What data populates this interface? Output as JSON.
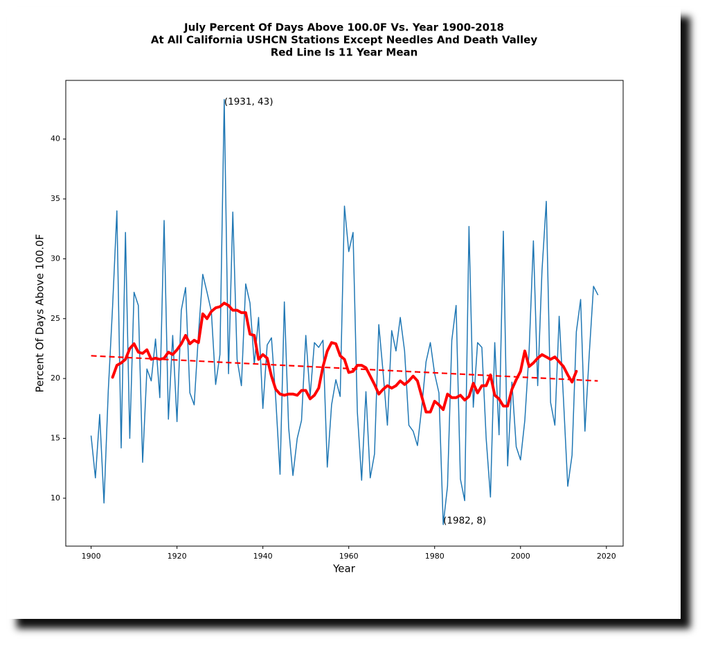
{
  "chart_data": {
    "type": "line",
    "title": [
      "July Percent Of Days Above 100.0F Vs. Year 1900-2018",
      "At All California USHCN Stations Except Needles And Death Valley",
      "Red Line Is 11 Year Mean"
    ],
    "x_label": "Year",
    "y_label": "Percent Of Days Above 100.0F",
    "xlim": [
      1894.1,
      2023.9
    ],
    "ylim": [
      6.0,
      44.9
    ],
    "xticks": [
      1900,
      1920,
      1940,
      1960,
      1980,
      2000,
      2020
    ],
    "yticks": [
      10,
      15,
      20,
      25,
      30,
      35,
      40
    ],
    "series": [
      {
        "color": "#1f77b4",
        "linestyle": "solid",
        "x": [
          1900,
          1901,
          1902,
          1903,
          1904,
          1905,
          1906,
          1907,
          1908,
          1909,
          1910,
          1911,
          1912,
          1913,
          1914,
          1915,
          1916,
          1917,
          1918,
          1919,
          1920,
          1921,
          1922,
          1923,
          1924,
          1925,
          1926,
          1927,
          1928,
          1929,
          1930,
          1931,
          1932,
          1933,
          1934,
          1935,
          1936,
          1937,
          1938,
          1939,
          1940,
          1941,
          1942,
          1943,
          1944,
          1945,
          1946,
          1947,
          1948,
          1949,
          1950,
          1951,
          1952,
          1953,
          1954,
          1955,
          1956,
          1957,
          1958,
          1959,
          1960,
          1961,
          1962,
          1963,
          1964,
          1965,
          1966,
          1967,
          1968,
          1969,
          1970,
          1971,
          1972,
          1973,
          1974,
          1975,
          1976,
          1977,
          1978,
          1979,
          1980,
          1981,
          1982,
          1983,
          1984,
          1985,
          1986,
          1987,
          1988,
          1989,
          1990,
          1991,
          1992,
          1993,
          1994,
          1995,
          1996,
          1997,
          1998,
          1999,
          2000,
          2001,
          2002,
          2003,
          2004,
          2005,
          2006,
          2007,
          2008,
          2009,
          2010,
          2011,
          2012,
          2013,
          2014,
          2015,
          2016,
          2017,
          2018
        ],
        "values": [
          15.2,
          11.7,
          17.0,
          9.6,
          19.0,
          26.0,
          34.0,
          14.2,
          32.2,
          15.0,
          27.2,
          26.1,
          13.0,
          20.8,
          19.8,
          23.3,
          18.4,
          33.2,
          16.6,
          23.6,
          16.4,
          25.7,
          27.6,
          18.8,
          17.8,
          23.7,
          28.7,
          27.2,
          25.6,
          19.5,
          22.0,
          43.3,
          20.4,
          33.9,
          21.6,
          19.4,
          27.9,
          26.3,
          21.2,
          25.1,
          17.5,
          22.8,
          23.4,
          18.3,
          12.0,
          26.4,
          15.9,
          11.9,
          15.0,
          16.5,
          23.6,
          18.5,
          23.0,
          22.6,
          23.2,
          12.6,
          17.8,
          19.9,
          18.5,
          34.4,
          30.6,
          32.2,
          17.2,
          11.5,
          18.9,
          11.7,
          13.7,
          24.5,
          20.5,
          16.1,
          24.0,
          22.3,
          25.1,
          22.3,
          16.1,
          15.6,
          14.4,
          17.6,
          21.4,
          23.0,
          20.4,
          18.8,
          7.8,
          11.0,
          23.2,
          26.1,
          11.6,
          9.8,
          32.7,
          17.6,
          23.0,
          22.6,
          15.0,
          10.1,
          23.0,
          15.3,
          32.3,
          12.7,
          19.7,
          14.3,
          13.2,
          16.5,
          22.3,
          31.5,
          19.4,
          29.0,
          34.8,
          18.0,
          16.1,
          25.2,
          18.3,
          11.0,
          13.6,
          23.9,
          26.6,
          15.6,
          22.0,
          27.7,
          27.0
        ]
      },
      {
        "color": "#ff0000",
        "linestyle": "solid",
        "x": [
          1905,
          1906,
          1907,
          1908,
          1909,
          1910,
          1911,
          1912,
          1913,
          1914,
          1915,
          1916,
          1917,
          1918,
          1919,
          1920,
          1921,
          1922,
          1923,
          1924,
          1925,
          1926,
          1927,
          1928,
          1929,
          1930,
          1931,
          1932,
          1933,
          1934,
          1935,
          1936,
          1937,
          1938,
          1939,
          1940,
          1941,
          1942,
          1943,
          1944,
          1945,
          1946,
          1947,
          1948,
          1949,
          1950,
          1951,
          1952,
          1953,
          1954,
          1955,
          1956,
          1957,
          1958,
          1959,
          1960,
          1961,
          1962,
          1963,
          1964,
          1965,
          1966,
          1967,
          1968,
          1969,
          1970,
          1971,
          1972,
          1973,
          1974,
          1975,
          1976,
          1977,
          1978,
          1979,
          1980,
          1981,
          1982,
          1983,
          1984,
          1985,
          1986,
          1987,
          1988,
          1989,
          1990,
          1991,
          1992,
          1993,
          1994,
          1995,
          1996,
          1997,
          1998,
          1999,
          2000,
          2001,
          2002,
          2003,
          2004,
          2005,
          2006,
          2007,
          2008,
          2009,
          2010,
          2011,
          2012,
          2013
        ],
        "values": [
          20.1,
          21.1,
          21.3,
          21.6,
          22.5,
          22.9,
          22.2,
          22.1,
          22.4,
          21.6,
          21.7,
          21.6,
          21.7,
          22.2,
          22.0,
          22.4,
          22.9,
          23.6,
          22.9,
          23.2,
          23.0,
          25.4,
          25.0,
          25.6,
          25.9,
          26.0,
          26.3,
          26.1,
          25.7,
          25.7,
          25.5,
          25.5,
          23.7,
          23.6,
          21.6,
          22.0,
          21.7,
          20.2,
          19.1,
          18.7,
          18.6,
          18.7,
          18.7,
          18.6,
          19.0,
          19.0,
          18.3,
          18.6,
          19.2,
          21.0,
          22.3,
          23.0,
          22.9,
          21.9,
          21.6,
          20.5,
          20.6,
          21.1,
          21.1,
          20.9,
          20.2,
          19.5,
          18.7,
          19.1,
          19.4,
          19.2,
          19.4,
          19.8,
          19.5,
          19.8,
          20.2,
          19.8,
          18.5,
          17.2,
          17.2,
          18.1,
          17.8,
          17.4,
          18.7,
          18.4,
          18.4,
          18.6,
          18.2,
          18.5,
          19.6,
          18.8,
          19.4,
          19.4,
          20.3,
          18.6,
          18.3,
          17.7,
          17.7,
          19.1,
          19.9,
          20.6,
          22.3,
          21.0,
          21.3,
          21.7,
          22.0,
          21.8,
          21.6,
          21.8,
          21.4,
          21.0,
          20.3,
          19.7,
          20.6
        ]
      },
      {
        "color": "#ff0000",
        "linestyle": "dashed",
        "x": [
          1900,
          2018
        ],
        "values": [
          21.9,
          19.8
        ]
      }
    ],
    "annotations": [
      {
        "text": "(1931, 43)",
        "x": 1931,
        "y": 43
      },
      {
        "text": "(1982, 8)",
        "x": 1982,
        "y": 8
      }
    ]
  }
}
